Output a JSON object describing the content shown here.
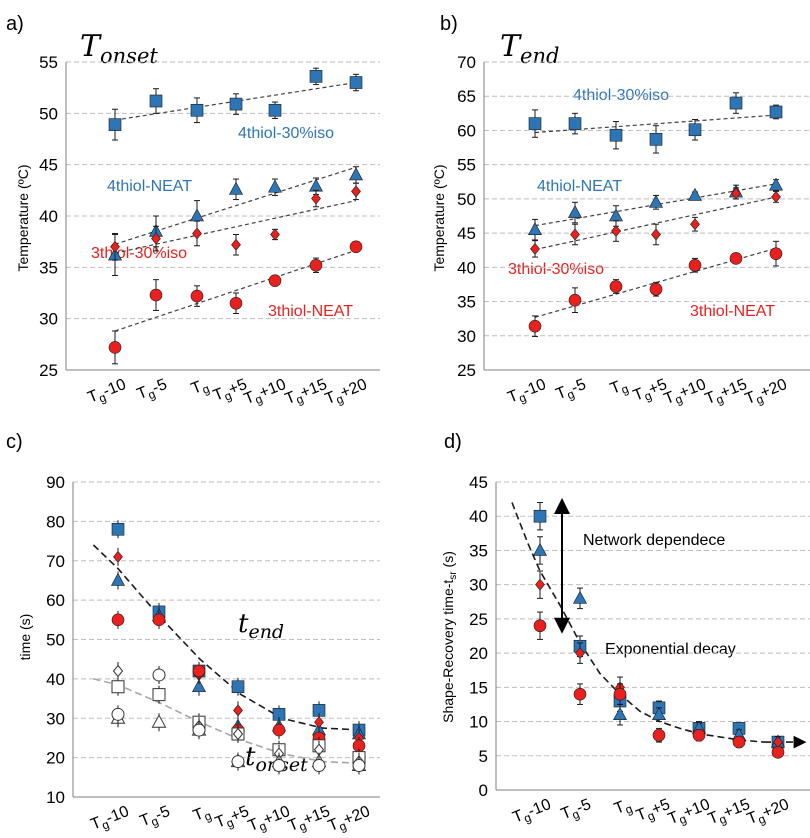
{
  "colors": {
    "square": "#2e75b6",
    "triangle": "#2e75b6",
    "circle": "#e8211f",
    "diamond": "#e8211f",
    "blue_text": "#2e75b6",
    "red_text": "#e8211f",
    "grid": "#bfbfbf",
    "trend": "#404040",
    "trend_gray": "#a6a6a6"
  },
  "chart_data": [
    {
      "panel": "a)",
      "type": "scatter",
      "title_main": "T",
      "title_sub": "onset",
      "ylabel": "Temperature (ºC)",
      "ylim": [
        25,
        55
      ],
      "yticks": [
        25,
        30,
        35,
        40,
        45,
        50,
        55
      ],
      "grid": true,
      "categories": [
        "Tg-10",
        "Tg-5",
        "Tg",
        "Tg+5",
        "Tg+10",
        "Tg+15",
        "Tg+20"
      ],
      "series": [
        {
          "name": "4thiol-30%iso",
          "marker": "square",
          "values": [
            48.9,
            51.2,
            50.3,
            50.9,
            50.3,
            53.6,
            53.0
          ],
          "errors": [
            1.5,
            1.2,
            1.2,
            1.0,
            0.8,
            0.8,
            0.8
          ]
        },
        {
          "name": "4thiol-NEAT",
          "marker": "triangle",
          "values": [
            36.2,
            38.5,
            40.0,
            42.6,
            42.8,
            42.9,
            44.0
          ],
          "errors": [
            2.0,
            1.5,
            1.5,
            1.0,
            0.8,
            0.8,
            0.8
          ]
        },
        {
          "name": "3thiol-30%iso",
          "marker": "diamond",
          "values": [
            37.0,
            37.8,
            38.3,
            37.2,
            38.2,
            41.7,
            42.4
          ],
          "errors": [
            1.3,
            1.2,
            1.2,
            1.0,
            0.5,
            0.8,
            0.8
          ]
        },
        {
          "name": "3thiol-NEAT",
          "marker": "circle",
          "values": [
            27.2,
            32.3,
            32.2,
            31.5,
            33.7,
            35.2,
            37.0
          ],
          "errors": [
            1.6,
            1.5,
            1.0,
            1.0,
            0.5,
            0.7,
            0.5
          ]
        }
      ],
      "labels": [
        "4thiol-30%iso",
        "4thiol-NEAT",
        "3thiol-30%iso",
        "3thiol-NEAT"
      ]
    },
    {
      "panel": "b)",
      "type": "scatter",
      "title_main": "T",
      "title_sub": "end",
      "ylabel": "Temperature (ºC)",
      "ylim": [
        25,
        70
      ],
      "yticks": [
        25,
        30,
        35,
        40,
        45,
        50,
        55,
        60,
        65,
        70
      ],
      "grid": true,
      "categories": [
        "Tg-10",
        "Tg-5",
        "Tg",
        "Tg+5",
        "Tg+10",
        "Tg+15",
        "Tg+20"
      ],
      "series": [
        {
          "name": "4thiol-30%iso",
          "marker": "square",
          "values": [
            61.0,
            61.0,
            59.3,
            58.7,
            60.1,
            64.0,
            62.7
          ],
          "errors": [
            2.0,
            1.5,
            2.0,
            2.0,
            1.5,
            1.5,
            1.0
          ]
        },
        {
          "name": "4thiol-NEAT",
          "marker": "triangle",
          "values": [
            45.5,
            48.0,
            47.5,
            49.5,
            50.5,
            51.0,
            52.0
          ],
          "errors": [
            1.5,
            1.5,
            1.5,
            1.0,
            0.5,
            1.0,
            0.8
          ]
        },
        {
          "name": "3thiol-30%iso",
          "marker": "diamond",
          "values": [
            42.7,
            44.8,
            45.3,
            44.8,
            46.3,
            50.8,
            50.3
          ],
          "errors": [
            1.2,
            1.5,
            1.5,
            1.5,
            1.0,
            0.8,
            0.8
          ]
        },
        {
          "name": "3thiol-NEAT",
          "marker": "circle",
          "values": [
            31.4,
            35.2,
            37.2,
            36.8,
            40.3,
            41.3,
            42.0
          ],
          "errors": [
            1.5,
            1.8,
            1.0,
            1.0,
            1.0,
            0.5,
            1.8
          ]
        }
      ],
      "labels": [
        "4thiol-30%iso",
        "4thiol-NEAT",
        "3thiol-30%iso",
        "3thiol-NEAT"
      ]
    },
    {
      "panel": "c)",
      "type": "scatter",
      "ylabel": "time (s)",
      "ylim": [
        10,
        90
      ],
      "yticks": [
        10,
        20,
        30,
        40,
        50,
        60,
        70,
        80,
        90
      ],
      "grid": true,
      "categories": [
        "Tg-10",
        "Tg-5",
        "Tg",
        "Tg+5",
        "Tg+10",
        "Tg+15",
        "Tg+20"
      ],
      "annotation_end": {
        "main": "t",
        "sub": "end"
      },
      "annotation_onset": {
        "main": "t",
        "sub": "onset"
      },
      "series": [
        {
          "marker": "square",
          "values": [
            78,
            57,
            42,
            38,
            31,
            32,
            27
          ]
        },
        {
          "marker": "triangle",
          "values": [
            65,
            56,
            38,
            28,
            28,
            27,
            26
          ]
        },
        {
          "marker": "diamond",
          "values": [
            71,
            55,
            41,
            32,
            27,
            29,
            25
          ]
        },
        {
          "marker": "circle",
          "values": [
            55,
            55,
            42,
            27,
            27,
            25,
            23
          ]
        },
        {
          "marker": "open-square",
          "values": [
            38,
            36,
            29,
            26,
            22,
            23,
            20
          ]
        },
        {
          "marker": "open-diamond",
          "values": [
            42,
            41,
            28,
            26,
            21,
            22,
            19
          ]
        },
        {
          "marker": "open-triangle",
          "values": [
            30,
            29,
            27,
            19,
            19,
            19,
            18
          ]
        },
        {
          "marker": "open-circle",
          "values": [
            31,
            41,
            27,
            19,
            18,
            18,
            18
          ]
        }
      ]
    },
    {
      "panel": "d)",
      "type": "scatter",
      "ylabel": "Shape-Recovery time-t",
      "ylabel_sub": "sr",
      "ylabel_unit": " (s)",
      "ylim": [
        0,
        45
      ],
      "yticks": [
        0,
        5,
        10,
        15,
        20,
        25,
        30,
        35,
        40,
        45
      ],
      "grid": true,
      "categories": [
        "Tg-10",
        "Tg-5",
        "Tg",
        "Tg+5",
        "Tg+10",
        "Tg+15",
        "Tg+20"
      ],
      "annotation_network": "Network dependece",
      "annotation_decay": "Exponential decay",
      "series": [
        {
          "marker": "square",
          "values": [
            40,
            21,
            13,
            12,
            9,
            9,
            7
          ],
          "errors": [
            2,
            1.5,
            1.5,
            1,
            1,
            0.8,
            0.8
          ]
        },
        {
          "marker": "triangle",
          "values": [
            35,
            28,
            11,
            11,
            9,
            8,
            7
          ],
          "errors": [
            2,
            1.5,
            1.5,
            1,
            0.8,
            0.8,
            0.8
          ]
        },
        {
          "marker": "diamond",
          "values": [
            30,
            20,
            15,
            8,
            8,
            7,
            7
          ],
          "errors": [
            2,
            1.5,
            1.5,
            1,
            0.8,
            0.8,
            0.8
          ]
        },
        {
          "marker": "circle",
          "values": [
            24,
            14,
            14,
            8,
            8,
            7,
            5.5
          ],
          "errors": [
            2,
            1.5,
            1.5,
            0.8,
            0.8,
            0.5,
            0.5
          ]
        }
      ]
    }
  ]
}
